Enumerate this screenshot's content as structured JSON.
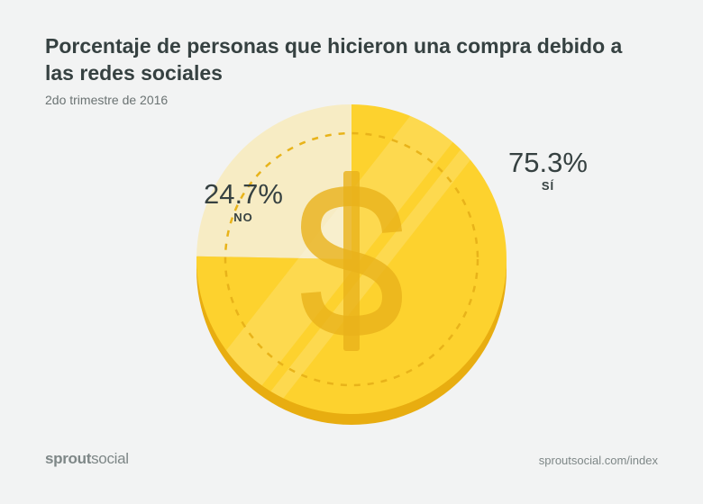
{
  "header": {
    "title": "Porcentaje de personas que hicieron una compra debido a las redes sociales",
    "subtitle": "2do trimestre de 2016"
  },
  "chart_data": {
    "type": "pie",
    "title": "Porcentaje de personas que hicieron una compra debido a las redes sociales",
    "subtitle": "2do trimestre de 2016",
    "slices": [
      {
        "label": "SÍ",
        "value": 75.3,
        "value_label": "75.3%",
        "color": "#fdd22e"
      },
      {
        "label": "NO",
        "value": 24.7,
        "value_label": "24.7%",
        "color": "#f7ecc4"
      }
    ]
  },
  "footer": {
    "brand_part1": "sprout",
    "brand_part2": "social",
    "source": "sproutsocial.com/index"
  }
}
